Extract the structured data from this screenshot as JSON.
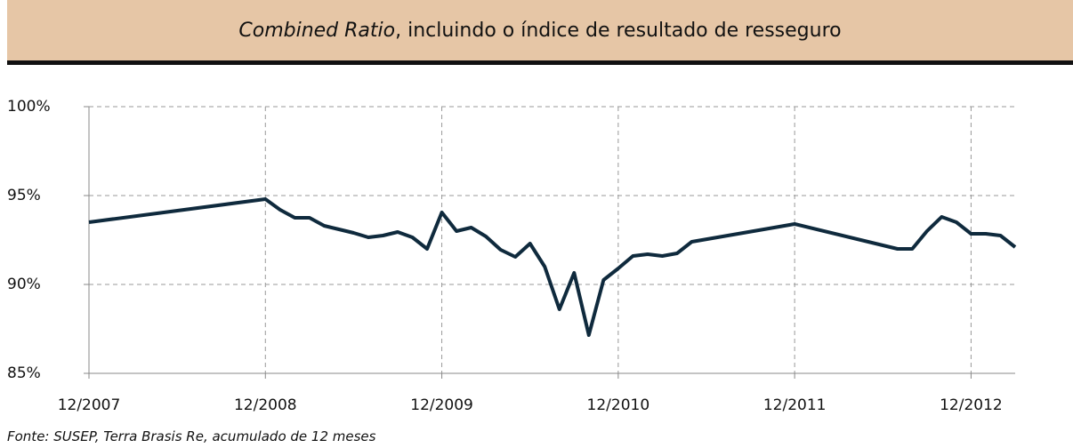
{
  "chart_data": {
    "type": "line",
    "title": {
      "emphasis": "Combined Ratio",
      "text": ", incluindo o índice de resultado de resseguro"
    },
    "source": "Fonte:  SUSEP, Terra Brasis Re, acumulado de 12 meses",
    "x": [
      "12/2007",
      "12/2008",
      "01/2009",
      "02/2009",
      "03/2009",
      "04/2009",
      "05/2009",
      "06/2009",
      "07/2009",
      "08/2009",
      "09/2009",
      "10/2009",
      "11/2009",
      "12/2009",
      "01/2010",
      "02/2010",
      "03/2010",
      "04/2010",
      "05/2010",
      "06/2010",
      "07/2010",
      "08/2010",
      "09/2010",
      "10/2010",
      "11/2010",
      "12/2010",
      "01/2011",
      "02/2011",
      "03/2011",
      "04/2011",
      "05/2011",
      "12/2011",
      "07/2012",
      "08/2012",
      "09/2012",
      "10/2012",
      "11/2012",
      "12/2012",
      "01/2013",
      "02/2013",
      "03/2013"
    ],
    "series": [
      {
        "name": "Combined Ratio",
        "color": "#0f2a3d",
        "values": [
          93.5,
          94.8,
          94.2,
          93.75,
          93.75,
          93.3,
          93.1,
          92.9,
          92.65,
          92.75,
          92.95,
          92.65,
          92.0,
          94.05,
          93.0,
          93.2,
          92.7,
          91.95,
          91.55,
          92.3,
          91.0,
          88.6,
          90.65,
          87.15,
          90.25,
          90.9,
          91.6,
          91.7,
          91.6,
          91.75,
          92.4,
          93.4,
          92.0,
          92.0,
          93.0,
          93.8,
          93.5,
          92.85,
          92.85,
          92.75,
          92.1
        ]
      }
    ],
    "xlim": [
      "12/2007",
      "03/2013"
    ],
    "xticks": [
      "12/2007",
      "12/2008",
      "12/2009",
      "12/2010",
      "12/2011",
      "12/2012"
    ],
    "ylim": [
      85,
      100
    ],
    "yticks": [
      {
        "value": 85,
        "label": "85%"
      },
      {
        "value": 90,
        "label": "90%"
      },
      {
        "value": 95,
        "label": "95%"
      },
      {
        "value": 100,
        "label": "100%"
      }
    ],
    "grid": true
  }
}
